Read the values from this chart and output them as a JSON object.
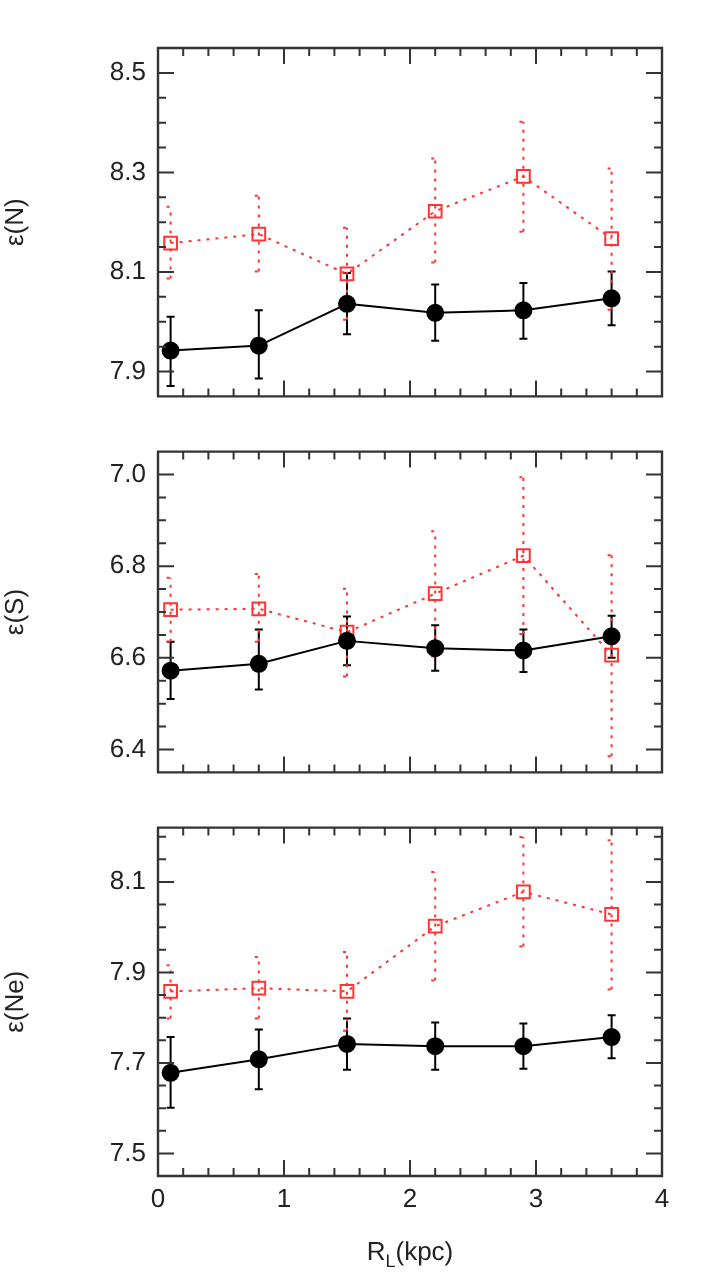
{
  "chart_data": [
    {
      "type": "line",
      "ylabel": "ε(N)",
      "x": [
        0.1,
        0.8,
        1.5,
        2.2,
        2.9,
        3.6
      ],
      "xlim": [
        0,
        4
      ],
      "tick_labels": "y",
      "xticks": [
        0,
        {
          "value": 0.2,
          "label": null
        },
        {
          "value": 0.4,
          "label": null
        },
        {
          "value": 0.6,
          "label": null
        },
        {
          "value": 0.8,
          "label": null
        },
        1,
        {
          "value": 1.2,
          "label": null
        },
        {
          "value": 1.4,
          "label": null
        },
        {
          "value": 1.6,
          "label": null
        },
        {
          "value": 1.8,
          "label": null
        },
        2,
        {
          "value": 2.2,
          "label": null
        },
        {
          "value": 2.4,
          "label": null
        },
        {
          "value": 2.6,
          "label": null
        },
        {
          "value": 2.8,
          "label": null
        },
        3,
        {
          "value": 3.2,
          "label": null
        },
        {
          "value": 3.4,
          "label": null
        },
        {
          "value": 3.6,
          "label": null
        },
        {
          "value": 3.8,
          "label": null
        },
        4
      ],
      "ylim": [
        7.85,
        8.55
      ],
      "yticks": [
        7.9,
        {
          "value": 7.95,
          "label": null
        },
        {
          "value": 8,
          "label": null
        },
        {
          "value": 8.05,
          "label": null
        },
        8.1,
        {
          "value": 8.15,
          "label": null
        },
        {
          "value": 8.2,
          "label": null
        },
        {
          "value": 8.25,
          "label": null
        },
        8.3,
        {
          "value": 8.35,
          "label": null
        },
        {
          "value": 8.4,
          "label": null
        },
        {
          "value": 8.45,
          "label": null
        },
        8.5
      ],
      "series": [
        {
          "color": "#000000",
          "marker": "circle",
          "line_style": "solid",
          "values": [
            7.942,
            7.952,
            8.036,
            8.018,
            8.023,
            8.047
          ],
          "errors": [
            [
              7.871,
              8.01
            ],
            [
              7.886,
              8.023
            ],
            [
              7.975,
              8.098
            ],
            [
              7.962,
              8.075
            ],
            [
              7.966,
              8.078
            ],
            [
              7.993,
              8.101
            ]
          ]
        },
        {
          "color": "#ff3333",
          "marker": "square",
          "line_style": "dotted",
          "values": [
            8.158,
            8.176,
            8.096,
            8.222,
            8.292,
            8.167
          ],
          "errors": [
            [
              8.087,
              8.231
            ],
            [
              8.101,
              8.253
            ],
            [
              8.004,
              8.189
            ],
            [
              8.119,
              8.328
            ],
            [
              8.181,
              8.402
            ],
            [
              8.024,
              8.308
            ]
          ]
        }
      ]
    },
    {
      "type": "line",
      "ylabel": "ε(S)",
      "x": [
        0.1,
        0.8,
        1.5,
        2.2,
        2.9,
        3.6
      ],
      "xlim": [
        0,
        4
      ],
      "tick_labels": "y",
      "xticks": [
        0,
        {
          "value": 0.2,
          "label": null
        },
        {
          "value": 0.4,
          "label": null
        },
        {
          "value": 0.6,
          "label": null
        },
        {
          "value": 0.8,
          "label": null
        },
        1,
        {
          "value": 1.2,
          "label": null
        },
        {
          "value": 1.4,
          "label": null
        },
        {
          "value": 1.6,
          "label": null
        },
        {
          "value": 1.8,
          "label": null
        },
        2,
        {
          "value": 2.2,
          "label": null
        },
        {
          "value": 2.4,
          "label": null
        },
        {
          "value": 2.6,
          "label": null
        },
        {
          "value": 2.8,
          "label": null
        },
        3,
        {
          "value": 3.2,
          "label": null
        },
        {
          "value": 3.4,
          "label": null
        },
        {
          "value": 3.6,
          "label": null
        },
        {
          "value": 3.8,
          "label": null
        },
        4
      ],
      "ylim": [
        6.35,
        7.05
      ],
      "yticks": [
        6.4,
        {
          "value": 6.45,
          "label": null
        },
        {
          "value": 6.5,
          "label": null
        },
        {
          "value": 6.55,
          "label": null
        },
        6.6,
        {
          "value": 6.65,
          "label": null
        },
        {
          "value": 6.7,
          "label": null
        },
        {
          "value": 6.75,
          "label": null
        },
        6.8,
        {
          "value": 6.85,
          "label": null
        },
        {
          "value": 6.9,
          "label": null
        },
        {
          "value": 6.95,
          "label": null
        },
        {
          "value": 7,
          "label": "7.0"
        }
      ],
      "series": [
        {
          "color": "#000000",
          "marker": "circle",
          "line_style": "solid",
          "values": [
            6.572,
            6.587,
            6.637,
            6.621,
            6.616,
            6.647
          ],
          "errors": [
            [
              6.51,
              6.635
            ],
            [
              6.531,
              6.662
            ],
            [
              6.584,
              6.69
            ],
            [
              6.572,
              6.671
            ],
            [
              6.569,
              6.662
            ],
            [
              6.6,
              6.692
            ]
          ]
        },
        {
          "color": "#ff3333",
          "marker": "square",
          "line_style": "dotted",
          "values": [
            6.705,
            6.707,
            6.656,
            6.74,
            6.823,
            6.606
          ],
          "errors": [
            [
              6.635,
              6.775
            ],
            [
              6.635,
              6.783
            ],
            [
              6.559,
              6.751
            ],
            [
              6.603,
              6.876
            ],
            [
              6.652,
              6.994
            ],
            [
              6.385,
              6.824
            ]
          ]
        }
      ]
    },
    {
      "type": "line",
      "ylabel": "ε(Ne)",
      "xlabel": "R$_{L}$(kpc)",
      "x": [
        0.1,
        0.8,
        1.5,
        2.2,
        2.9,
        3.6
      ],
      "xlim": [
        0,
        4
      ],
      "xticks": [
        0,
        {
          "value": 0.2,
          "label": null
        },
        {
          "value": 0.4,
          "label": null
        },
        {
          "value": 0.6,
          "label": null
        },
        {
          "value": 0.8,
          "label": null
        },
        1,
        {
          "value": 1.2,
          "label": null
        },
        {
          "value": 1.4,
          "label": null
        },
        {
          "value": 1.6,
          "label": null
        },
        {
          "value": 1.8,
          "label": null
        },
        2,
        {
          "value": 2.2,
          "label": null
        },
        {
          "value": 2.4,
          "label": null
        },
        {
          "value": 2.6,
          "label": null
        },
        {
          "value": 2.8,
          "label": null
        },
        3,
        {
          "value": 3.2,
          "label": null
        },
        {
          "value": 3.4,
          "label": null
        },
        {
          "value": 3.6,
          "label": null
        },
        {
          "value": 3.8,
          "label": null
        },
        4
      ],
      "ylim": [
        7.45,
        8.22
      ],
      "yticks": [
        7.5,
        {
          "value": 7.55,
          "label": null
        },
        {
          "value": 7.6,
          "label": null
        },
        {
          "value": 7.65,
          "label": null
        },
        7.7,
        {
          "value": 7.75,
          "label": null
        },
        {
          "value": 7.8,
          "label": null
        },
        {
          "value": 7.85,
          "label": null
        },
        7.9,
        {
          "value": 7.95,
          "label": null
        },
        {
          "value": 8,
          "label": null
        },
        {
          "value": 8.05,
          "label": null
        },
        8.1,
        {
          "value": 8.15,
          "label": null
        },
        {
          "value": 8.2,
          "label": null
        }
      ],
      "series": [
        {
          "color": "#000000",
          "marker": "circle",
          "line_style": "solid",
          "values": [
            7.678,
            7.708,
            7.742,
            7.737,
            7.737,
            7.757
          ],
          "errors": [
            [
              7.601,
              7.757
            ],
            [
              7.642,
              7.774
            ],
            [
              7.685,
              7.798
            ],
            [
              7.685,
              7.789
            ],
            [
              7.687,
              7.787
            ],
            [
              7.71,
              7.805
            ]
          ]
        },
        {
          "color": "#ff3333",
          "marker": "square",
          "line_style": "dotted",
          "values": [
            7.858,
            7.865,
            7.858,
            8.002,
            8.078,
            8.028
          ],
          "errors": [
            [
              7.798,
              7.916
            ],
            [
              7.798,
              7.934
            ],
            [
              7.771,
              7.945
            ],
            [
              7.882,
              8.122
            ],
            [
              7.957,
              8.199
            ],
            [
              7.862,
              8.192
            ]
          ]
        }
      ]
    }
  ]
}
